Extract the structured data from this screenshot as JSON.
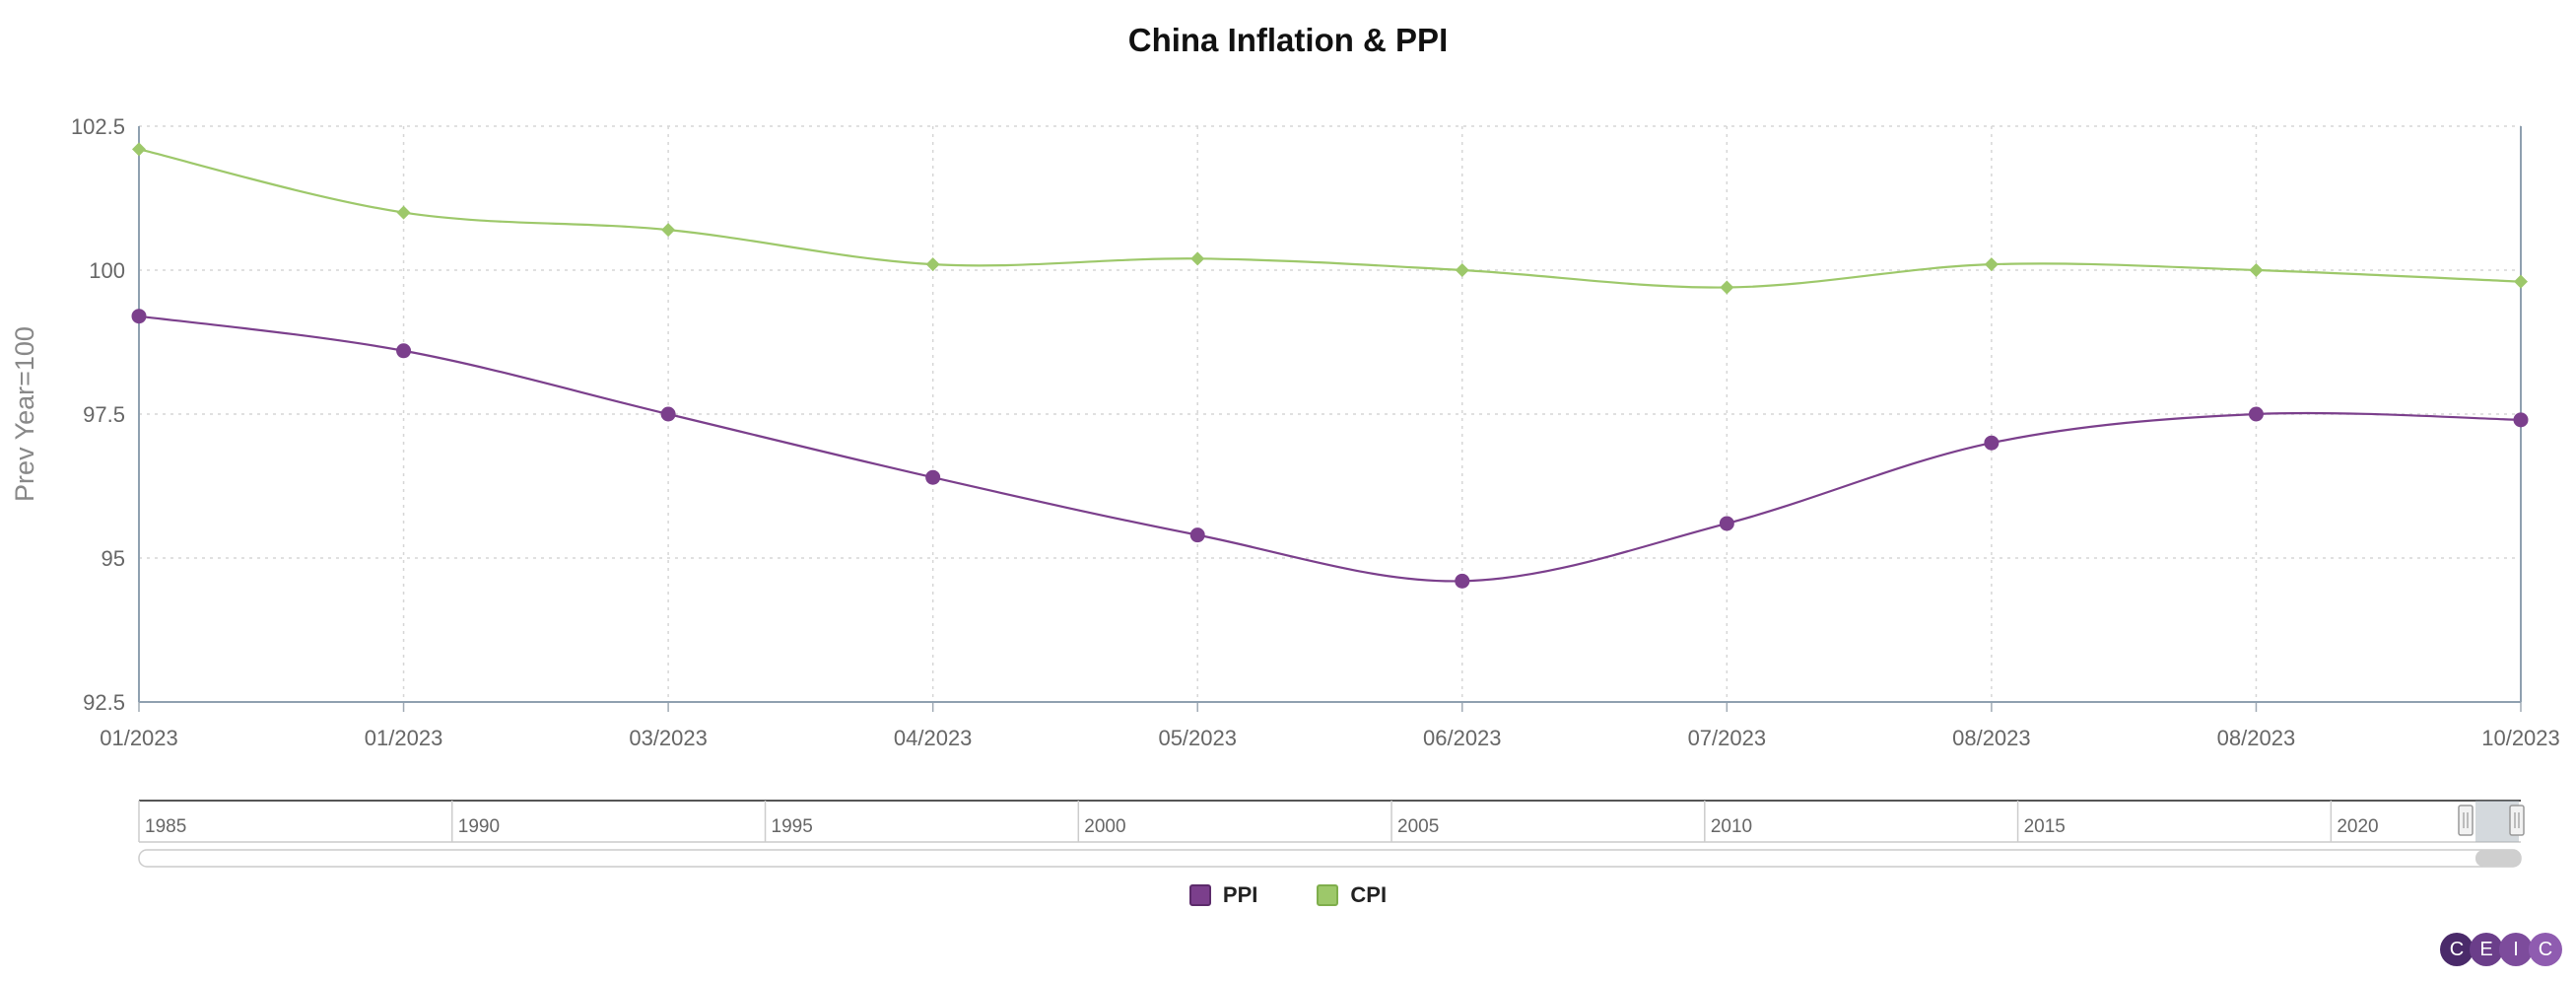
{
  "chart_data": {
    "type": "line",
    "title": "China Inflation & PPI",
    "ylabel": "Prev Year=100",
    "xlabel": "",
    "ylim": [
      92.5,
      102.5
    ],
    "y_ticks": [
      "92.5",
      "95",
      "97.5",
      "100",
      "102.5"
    ],
    "categories": [
      "01/2023",
      "01/2023",
      "03/2023",
      "04/2023",
      "05/2023",
      "06/2023",
      "07/2023",
      "08/2023",
      "08/2023",
      "10/2023"
    ],
    "grid": true,
    "legend_position": "bottom",
    "series": [
      {
        "name": "PPI",
        "color": "#7b3f8c",
        "marker": "circle",
        "values": [
          99.2,
          98.6,
          97.5,
          96.4,
          95.4,
          94.6,
          95.6,
          97.0,
          97.5,
          97.4
        ]
      },
      {
        "name": "CPI",
        "color": "#9dc86a",
        "marker": "diamond",
        "values": [
          102.1,
          101.0,
          100.7,
          100.1,
          100.2,
          100.0,
          99.7,
          100.1,
          100.0,
          99.8
        ]
      }
    ]
  },
  "navigator": {
    "labels": [
      "1985",
      "1990",
      "1995",
      "2000",
      "2005",
      "2010",
      "2015",
      "2020"
    ]
  },
  "logo": {
    "letters": [
      "C",
      "E",
      "I",
      "C"
    ],
    "colors": [
      "#4a2a6a",
      "#6b3e8a",
      "#7d4c9c",
      "#8f5cb0"
    ]
  }
}
